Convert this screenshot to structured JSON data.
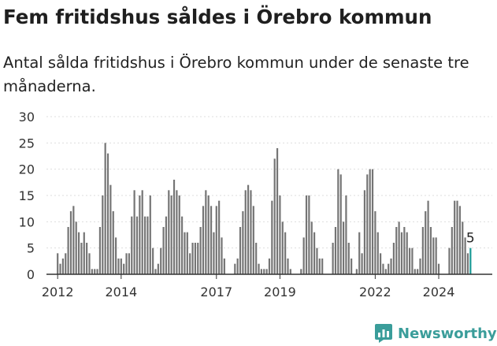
{
  "title": "Fem fritidshus såldes i Örebro kommun",
  "subtitle": "Antal sålda fritidshus i Örebro kommun under de senaste tre månaderna.",
  "brand": {
    "name": "Newsworthy",
    "icon": "newsworthy-logo-icon",
    "color": "#3a9d9a"
  },
  "colors": {
    "bar": "#757575",
    "highlight": "#1a9a96",
    "grid": "#dddddd",
    "axis": "#333333"
  },
  "chart_data": {
    "type": "bar",
    "ylim": [
      0,
      30
    ],
    "yticks": [
      0,
      5,
      10,
      15,
      20,
      25,
      30
    ],
    "grid": true,
    "xlabels": [
      {
        "label": "2012",
        "index": 3
      },
      {
        "label": "2014",
        "index": 27
      },
      {
        "label": "2017",
        "index": 63
      },
      {
        "label": "2019",
        "index": 87
      },
      {
        "label": "2022",
        "index": 123
      },
      {
        "label": "2024",
        "index": 147
      }
    ],
    "annotation": {
      "text": "5",
      "index": 159
    },
    "values": [
      0,
      0,
      0,
      4,
      2,
      3,
      4,
      9,
      12,
      13,
      10,
      8,
      6,
      8,
      6,
      4,
      1,
      1,
      1,
      9,
      15,
      25,
      23,
      17,
      12,
      7,
      3,
      3,
      2,
      4,
      4,
      11,
      16,
      11,
      15,
      16,
      11,
      11,
      15,
      5,
      1,
      2,
      5,
      9,
      11,
      16,
      15,
      18,
      16,
      15,
      11,
      8,
      8,
      4,
      6,
      6,
      6,
      9,
      13,
      16,
      15,
      13,
      8,
      13,
      14,
      7,
      3,
      0,
      0,
      0,
      2,
      3,
      9,
      12,
      16,
      17,
      16,
      13,
      6,
      2,
      1,
      1,
      1,
      3,
      14,
      22,
      24,
      15,
      10,
      8,
      3,
      1,
      0,
      0,
      0,
      1,
      7,
      15,
      15,
      10,
      8,
      5,
      3,
      3,
      0,
      0,
      0,
      6,
      9,
      20,
      19,
      10,
      15,
      6,
      3,
      0,
      1,
      8,
      4,
      16,
      19,
      20,
      20,
      12,
      8,
      4,
      2,
      1,
      2,
      3,
      6,
      9,
      10,
      8,
      9,
      8,
      5,
      5,
      1,
      1,
      3,
      9,
      12,
      14,
      9,
      7,
      7,
      2,
      0,
      0,
      0,
      5,
      9,
      14,
      14,
      13,
      10,
      7,
      4,
      5
    ]
  }
}
